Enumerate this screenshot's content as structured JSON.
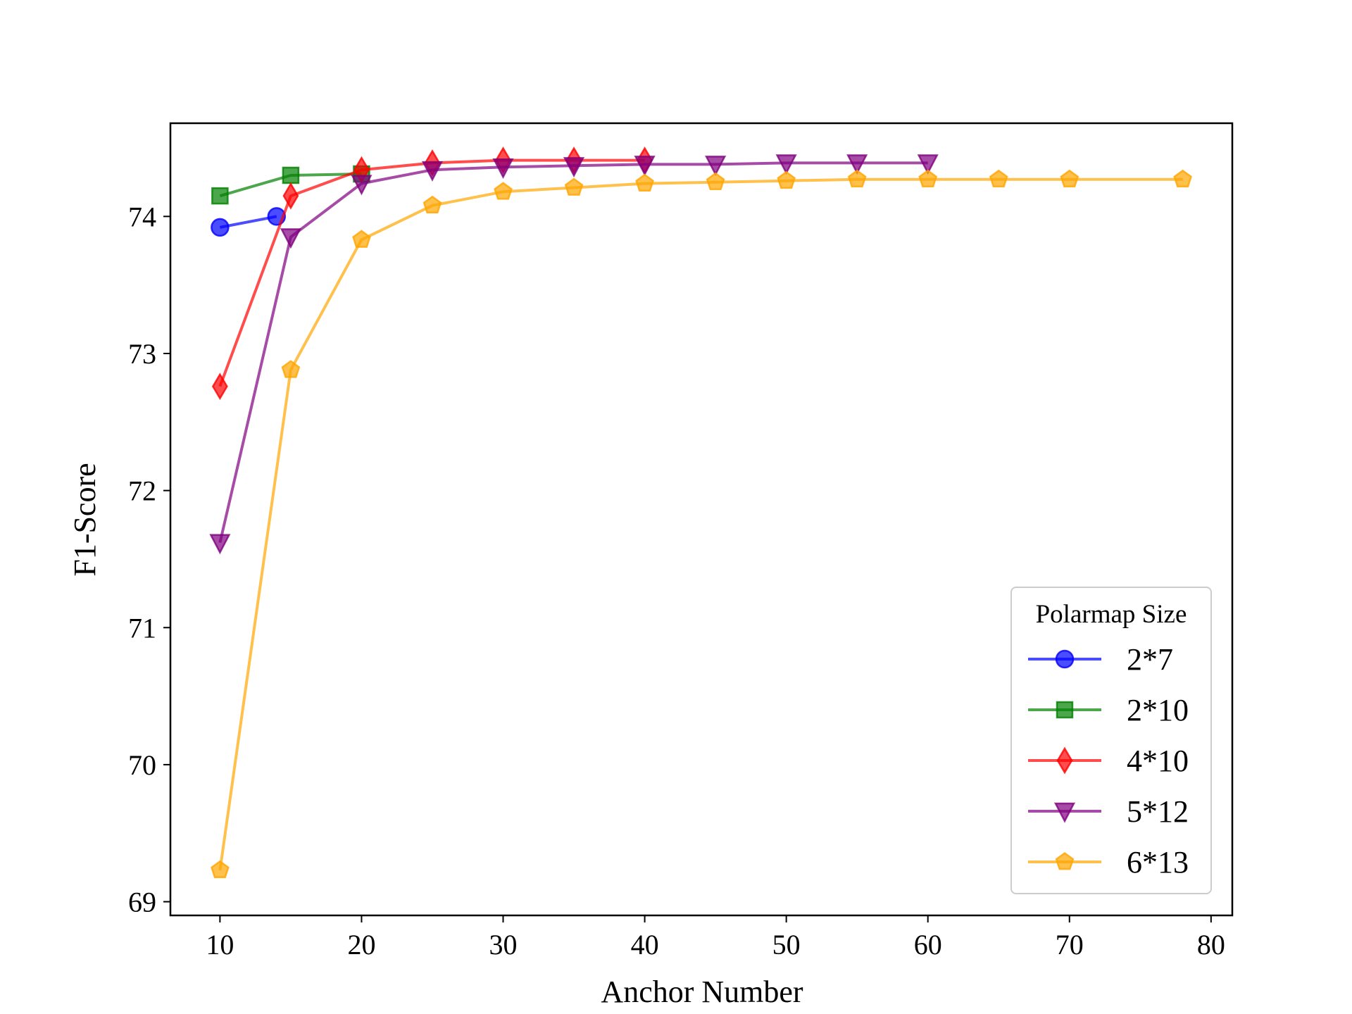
{
  "chart_data": {
    "type": "line",
    "title": "",
    "xlabel": "Anchor Number",
    "ylabel": "F1-Score",
    "xlim": [
      6.5,
      81.5
    ],
    "ylim": [
      68.9,
      74.68
    ],
    "xticks": [
      10,
      20,
      30,
      40,
      50,
      60,
      70,
      80
    ],
    "yticks": [
      69,
      70,
      71,
      72,
      73,
      74
    ],
    "grid": false,
    "legend": {
      "title": "Polarmap Size",
      "placement": "lower-right"
    },
    "series": [
      {
        "name": "2*7",
        "color": "#0000ff",
        "marker": "circle",
        "x": [
          10,
          14
        ],
        "y": [
          73.92,
          74.0
        ]
      },
      {
        "name": "2*10",
        "color": "#008000",
        "marker": "square",
        "x": [
          10,
          15,
          20
        ],
        "y": [
          74.15,
          74.3,
          74.31
        ]
      },
      {
        "name": "4*10",
        "color": "#ff0000",
        "marker": "diamond",
        "x": [
          10,
          15,
          20,
          25,
          30,
          35,
          40
        ],
        "y": [
          72.76,
          74.15,
          74.34,
          74.39,
          74.41,
          74.41,
          74.41
        ]
      },
      {
        "name": "5*12",
        "color": "#800080",
        "marker": "triangle-down",
        "x": [
          10,
          15,
          20,
          25,
          30,
          35,
          40,
          45,
          50,
          55,
          60
        ],
        "y": [
          71.62,
          73.85,
          74.24,
          74.34,
          74.36,
          74.37,
          74.38,
          74.38,
          74.39,
          74.39,
          74.39
        ]
      },
      {
        "name": "6*13",
        "color": "#ffa500",
        "marker": "pentagon",
        "x": [
          10,
          15,
          20,
          25,
          30,
          35,
          40,
          45,
          50,
          55,
          60,
          65,
          70,
          78
        ],
        "y": [
          69.23,
          72.88,
          73.83,
          74.08,
          74.18,
          74.21,
          74.24,
          74.25,
          74.26,
          74.27,
          74.27,
          74.27,
          74.27,
          74.27
        ]
      }
    ]
  }
}
